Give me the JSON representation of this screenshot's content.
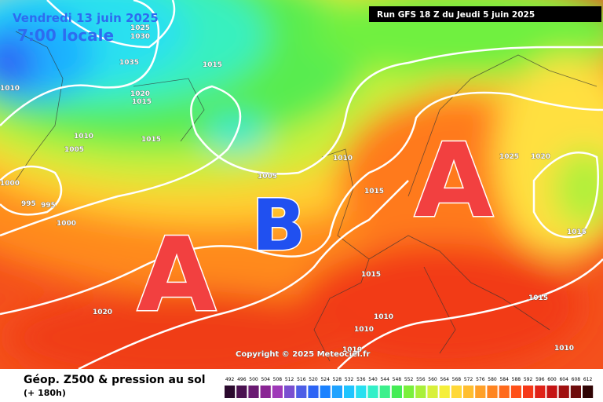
{
  "header": {
    "valid_date": "Vendredi 13 juin 2025",
    "local_time": "7:00 locale",
    "run": "Run GFS 18 Z du Jeudi 5 juin 2025"
  },
  "pressure_centers": [
    "A",
    "B",
    "A"
  ],
  "isobar_labels": [
    1025,
    1030,
    1035,
    1015,
    1010,
    1020,
    1015,
    1010,
    1005,
    1015,
    1005,
    1010,
    1015,
    1025,
    1020,
    1015,
    1000,
    995,
    995,
    1000,
    1015,
    1015,
    1020,
    1010,
    1010,
    1010,
    1010
  ],
  "copyright": "Copyright © 2025 Meteociel.fr",
  "legend": {
    "title": "Géop. Z500 & pression au sol",
    "lead": "(+ 180h)",
    "scale": {
      "values": [
        492,
        496,
        500,
        504,
        508,
        512,
        516,
        520,
        524,
        528,
        532,
        536,
        540,
        544,
        548,
        552,
        556,
        560,
        564,
        568,
        572,
        576,
        580,
        584,
        588,
        592,
        596,
        600,
        604,
        608,
        612
      ],
      "colors": [
        "#2b0a2e",
        "#4a1150",
        "#6a1a72",
        "#8a2594",
        "#9f39b8",
        "#7a4fd0",
        "#4d5ee6",
        "#2d64f5",
        "#1b82ff",
        "#1fa2ff",
        "#1fc4ff",
        "#28e0f0",
        "#33f0c8",
        "#3cf08c",
        "#44ec55",
        "#7af03c",
        "#a8f03a",
        "#d8f03a",
        "#f5ef3a",
        "#ffd838",
        "#ffbe30",
        "#ffa028",
        "#ff8420",
        "#ff6a1c",
        "#ff5018",
        "#f53818",
        "#e02218",
        "#c51414",
        "#a01010",
        "#6e0c0c",
        "#300404"
      ]
    }
  }
}
